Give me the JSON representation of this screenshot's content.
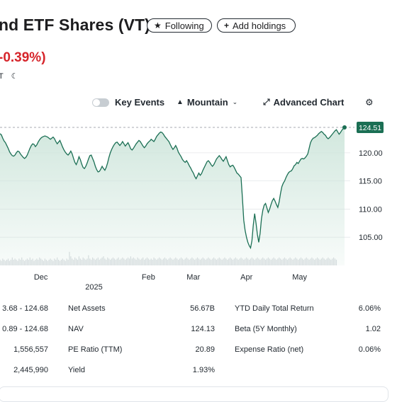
{
  "header": {
    "title": "nd ETF Shares (VT)",
    "following_label": "Following",
    "add_holdings_label": "Add holdings"
  },
  "quote": {
    "change_percent": "-0.39%)",
    "time_fragment": "T"
  },
  "toolbar": {
    "key_events_label": "Key Events",
    "mountain_label": "Mountain",
    "advanced_chart_label": "Advanced Chart"
  },
  "colors": {
    "line": "#1b6f54",
    "area_top": "#cfe6dc",
    "negative": "#d6252b"
  },
  "chart_data": {
    "type": "area",
    "current_price": 124.51,
    "current_price_label": "124.51",
    "y_ticks": [
      "120.00",
      "115.00",
      "110.00",
      "105.00"
    ],
    "y_tick_values": [
      120,
      115,
      110,
      105
    ],
    "ylim": [
      101,
      126.4
    ],
    "x_labels": [
      {
        "label": "Dec",
        "i": 30
      },
      {
        "label": "Feb",
        "i": 109
      },
      {
        "label": "Mar",
        "i": 142
      },
      {
        "label": "Apr",
        "i": 181
      },
      {
        "label": "May",
        "i": 220
      }
    ],
    "year_label": "2025",
    "year_label_i": 69,
    "points": [
      123.4,
      123.2,
      122.6,
      122.1,
      121.8,
      121.3,
      120.8,
      120.2,
      119.8,
      119.5,
      119.4,
      119.6,
      120.0,
      120.3,
      120.2,
      119.8,
      119.5,
      119.2,
      119.0,
      119.2,
      119.6,
      120.2,
      120.8,
      121.3,
      121.6,
      121.5,
      121.1,
      121.4,
      121.9,
      122.3,
      122.6,
      122.8,
      122.9,
      123.0,
      122.9,
      122.8,
      122.6,
      122.4,
      122.6,
      122.8,
      122.5,
      122.0,
      121.6,
      121.9,
      122.2,
      121.6,
      121.0,
      120.5,
      120.1,
      119.8,
      119.6,
      119.9,
      120.3,
      119.8,
      119.0,
      118.3,
      117.9,
      118.5,
      119.3,
      118.8,
      118.0,
      117.4,
      117.2,
      117.6,
      118.2,
      118.9,
      119.5,
      119.6,
      119.0,
      118.4,
      117.6,
      117.0,
      116.6,
      116.7,
      117.1,
      117.6,
      117.2,
      116.9,
      117.4,
      118.2,
      119.2,
      120.0,
      120.6,
      121.1,
      121.5,
      121.8,
      121.9,
      121.6,
      121.3,
      121.6,
      122.0,
      121.6,
      121.2,
      121.5,
      121.8,
      121.3,
      120.7,
      120.5,
      120.8,
      121.2,
      121.6,
      121.9,
      122.2,
      122.0,
      121.6,
      121.2,
      120.9,
      121.2,
      121.6,
      121.9,
      122.1,
      122.4,
      122.2,
      122.0,
      122.4,
      122.9,
      123.2,
      123.5,
      123.7,
      123.6,
      123.3,
      122.9,
      122.6,
      122.3,
      122.0,
      121.5,
      121.0,
      120.6,
      120.9,
      121.3,
      120.8,
      120.1,
      119.7,
      119.3,
      118.8,
      118.5,
      118.3,
      118.6,
      118.2,
      117.7,
      117.3,
      116.8,
      116.4,
      115.8,
      115.4,
      115.9,
      116.4,
      116.0,
      116.3,
      116.9,
      117.4,
      117.9,
      118.4,
      118.6,
      118.3,
      117.9,
      117.6,
      117.9,
      118.4,
      118.9,
      119.2,
      119.5,
      119.2,
      118.8,
      118.5,
      118.9,
      119.3,
      118.6,
      117.9,
      117.5,
      117.7,
      117.8,
      117.4,
      116.9,
      116.4,
      116.2,
      115.9,
      115.6,
      112.0,
      108.0,
      106.2,
      105.0,
      104.1,
      103.5,
      103.1,
      104.4,
      107.2,
      109.2,
      107.5,
      105.5,
      104.1,
      105.7,
      108.3,
      109.8,
      110.7,
      111.0,
      110.2,
      109.4,
      110.0,
      110.8,
      111.5,
      111.9,
      111.4,
      110.8,
      110.3,
      111.3,
      112.8,
      114.0,
      114.6,
      115.0,
      115.6,
      116.1,
      116.5,
      116.7,
      116.8,
      117.2,
      117.7,
      117.9,
      118.3,
      118.1,
      118.5,
      118.9,
      119.0,
      118.9,
      119.1,
      119.4,
      119.8,
      120.8,
      121.8,
      122.3,
      122.6,
      122.7,
      122.9,
      123.1,
      123.4,
      123.6,
      123.8,
      123.6,
      123.3,
      123.1,
      122.7,
      122.5,
      122.7,
      123.0,
      123.3,
      123.6,
      123.9,
      124.1,
      123.7,
      123.3,
      123.6,
      124.0,
      124.3,
      124.51
    ],
    "volumes": [
      0.05,
      0.04,
      0.06,
      0.05,
      0.04,
      0.05,
      0.06,
      0.04,
      0.05,
      0.07,
      0.05,
      0.06,
      0.05,
      0.04,
      0.06,
      0.05,
      0.07,
      0.05,
      0.04,
      0.05,
      0.06,
      0.05,
      0.07,
      0.05,
      0.06,
      0.04,
      0.05,
      0.06,
      0.05,
      0.07,
      0.06,
      0.05,
      0.04,
      0.06,
      0.05,
      0.04,
      0.05,
      0.06,
      0.05,
      0.04,
      0.06,
      0.05,
      0.07,
      0.05,
      0.04,
      0.05,
      0.06,
      0.05,
      0.04,
      0.06,
      0.05,
      0.12,
      0.08,
      0.06,
      0.05,
      0.07,
      0.06,
      0.05,
      0.08,
      0.06,
      0.05,
      0.07,
      0.06,
      0.05,
      0.06,
      0.09,
      0.06,
      0.05,
      0.07,
      0.06,
      0.05,
      0.06,
      0.07,
      0.05,
      0.06,
      0.07,
      0.08,
      0.06,
      0.05,
      0.07,
      0.06,
      0.05,
      0.06,
      0.07,
      0.06,
      0.05,
      0.06,
      0.07,
      0.05,
      0.06,
      0.07,
      0.06,
      0.05,
      0.06,
      0.07,
      0.06,
      0.08,
      0.06,
      0.07,
      0.06,
      0.05,
      0.07,
      0.06,
      0.05,
      0.06,
      0.07,
      0.05,
      0.06,
      0.07,
      0.06,
      0.05,
      0.06,
      0.05,
      0.07,
      0.06,
      0.05,
      0.06,
      0.07,
      0.06,
      0.05,
      0.06,
      0.07,
      0.06,
      0.05,
      0.06,
      0.07,
      0.06,
      0.05,
      0.06,
      0.07,
      0.06,
      0.05,
      0.06,
      0.07,
      0.06,
      0.05,
      0.06,
      0.07,
      0.06,
      0.05,
      0.06,
      0.07,
      0.06,
      0.05,
      0.06,
      0.07,
      0.06,
      0.05,
      0.06,
      0.07,
      0.06,
      0.05,
      0.06,
      0.07,
      0.06,
      0.05,
      0.06,
      0.07,
      0.06,
      0.05,
      0.06,
      0.07,
      0.06,
      0.05,
      0.06,
      0.07,
      0.06,
      0.05,
      0.06,
      0.07,
      0.06,
      0.05,
      0.06,
      0.07,
      0.06,
      0.05,
      0.06,
      0.07,
      0.06,
      0.05,
      0.06,
      0.07,
      0.06,
      0.05,
      0.06,
      0.07,
      0.06,
      0.05,
      0.06,
      0.07,
      0.06,
      0.05,
      0.06,
      0.07,
      0.06,
      0.05,
      0.06,
      0.07,
      0.06,
      0.05,
      0.06,
      0.07,
      0.06,
      0.05,
      0.06,
      0.07,
      0.06,
      0.05,
      0.06,
      0.07,
      0.06,
      0.05,
      0.06,
      0.07,
      0.06,
      0.05,
      0.06,
      0.07,
      0.06,
      0.05,
      0.06,
      0.07,
      0.06,
      0.05,
      0.06,
      0.07,
      0.06,
      0.05,
      0.06,
      0.07,
      0.06,
      0.05,
      0.06,
      0.07,
      0.06,
      0.05,
      0.06,
      0.07,
      0.06,
      0.05,
      0.06,
      0.07,
      0.06,
      0.05,
      0.06,
      0.07,
      0.06,
      0.05
    ]
  },
  "stats": {
    "rows": [
      {
        "left_value": "3.68 - 124.68",
        "label": "Net Assets",
        "value": "56.67B",
        "label2": "YTD Daily Total Return",
        "value2": "6.06%"
      },
      {
        "left_value": "0.89 - 124.68",
        "label": "NAV",
        "value": "124.13",
        "label2": "Beta (5Y Monthly)",
        "value2": "1.02"
      },
      {
        "left_value": "1,556,557",
        "label": "PE Ratio (TTM)",
        "value": "20.89",
        "label2": "Expense Ratio (net)",
        "value2": "0.06%"
      },
      {
        "left_value": "2,445,990",
        "label": "Yield",
        "value": "1.93%",
        "label2": "",
        "value2": ""
      }
    ]
  }
}
